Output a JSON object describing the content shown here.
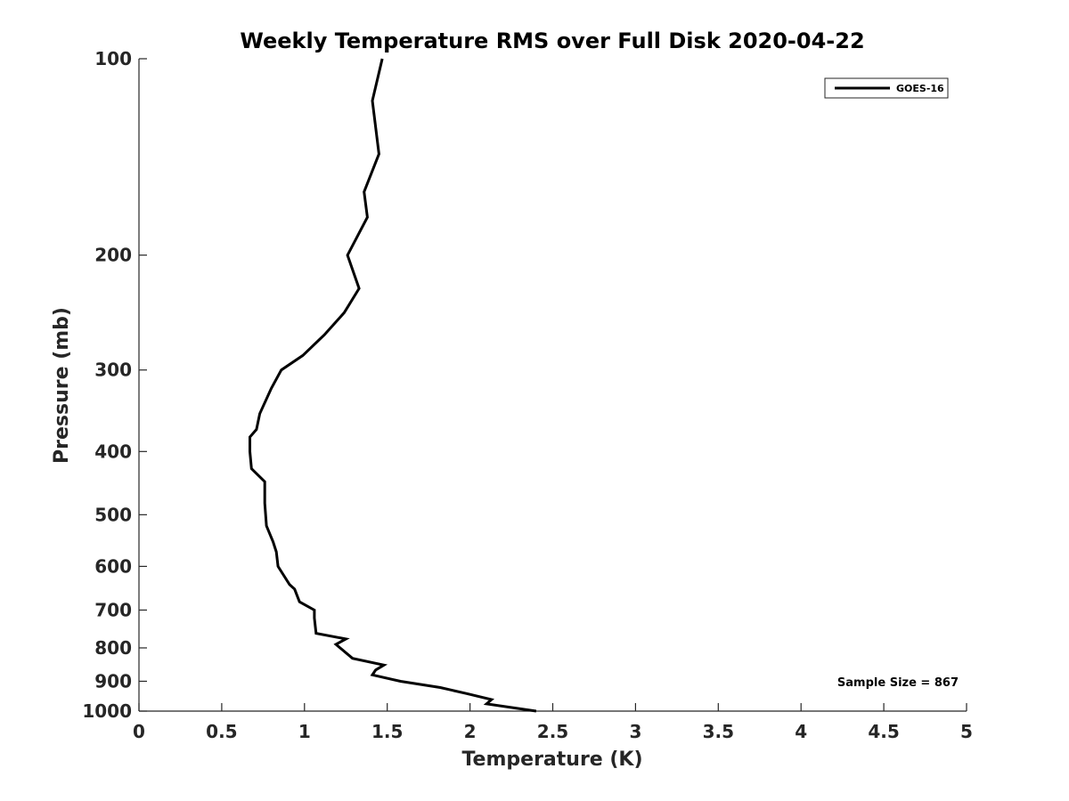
{
  "chart_data": {
    "type": "line",
    "title": "Weekly Temperature RMS over Full Disk 2020-04-22",
    "xlabel": "Temperature (K)",
    "ylabel": "Pressure (mb)",
    "xlim": [
      0,
      5
    ],
    "ylim": [
      100,
      1000
    ],
    "yscale": "log",
    "yreversed": true,
    "grid": false,
    "legend_position": "top-right",
    "xticks": [
      0,
      0.5,
      1,
      1.5,
      2,
      2.5,
      3,
      3.5,
      4,
      4.5,
      5
    ],
    "xtick_labels": [
      "0",
      "0.5",
      "1",
      "1.5",
      "2",
      "2.5",
      "3",
      "3.5",
      "4",
      "4.5",
      "5"
    ],
    "yticks": [
      100,
      200,
      300,
      400,
      500,
      600,
      700,
      800,
      900,
      1000
    ],
    "ytick_labels": [
      "100",
      "200",
      "300",
      "400",
      "500",
      "600",
      "700",
      "800",
      "900",
      "1000"
    ],
    "annotation": "Sample Size = 867",
    "series": [
      {
        "name": "GOES-16",
        "color": "#000000",
        "x": [
          1.47,
          1.41,
          1.45,
          1.36,
          1.38,
          1.26,
          1.33,
          1.24,
          1.12,
          0.99,
          0.86,
          0.8,
          0.73,
          0.71,
          0.67,
          0.67,
          0.68,
          0.76,
          0.76,
          0.77,
          0.81,
          0.83,
          0.84,
          0.91,
          0.94,
          0.97,
          1.06,
          1.06,
          1.07,
          1.25,
          1.19,
          1.29,
          1.48,
          1.43,
          1.41,
          1.58,
          1.82,
          1.98,
          2.13,
          2.1,
          2.4
        ],
        "y": [
          100,
          116,
          140,
          160,
          175,
          200,
          225,
          245,
          265,
          285,
          300,
          320,
          350,
          370,
          380,
          400,
          425,
          445,
          480,
          520,
          550,
          570,
          600,
          640,
          650,
          680,
          700,
          720,
          760,
          775,
          790,
          830,
          850,
          865,
          880,
          900,
          920,
          940,
          960,
          975,
          1000
        ]
      }
    ]
  }
}
